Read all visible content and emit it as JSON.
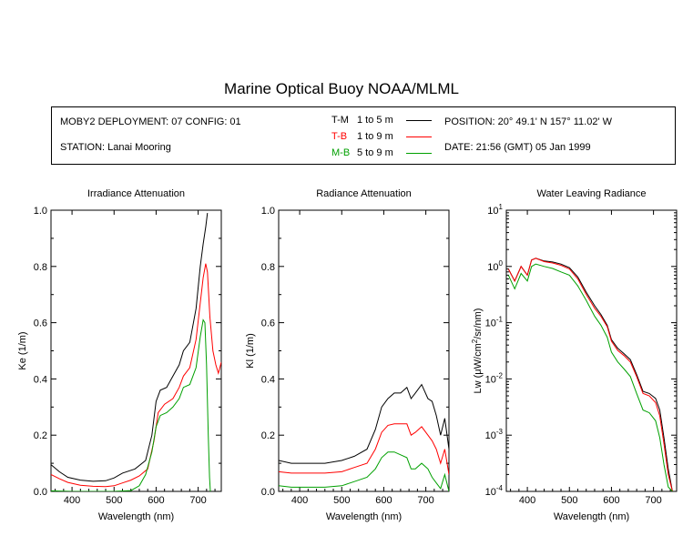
{
  "title": "Marine Optical Buoy NOAA/MLML",
  "info": {
    "deployment": "MOBY2 DEPLOYMENT: 07 CONFIG: 01",
    "station": "STATION: Lanai Mooring",
    "position": "POSITION: 20° 49.1' N   157° 11.02' W",
    "date": "DATE: 21:56 (GMT) 05 Jan 1999"
  },
  "legend": [
    {
      "code": "T-M",
      "range": "1 to 5  m",
      "color": "#000000"
    },
    {
      "code": "T-B",
      "range": "1 to 9  m",
      "color": "#ff0000"
    },
    {
      "code": "M-B",
      "range": "5 to 9  m",
      "color": "#00a000"
    }
  ],
  "chart_data": [
    {
      "type": "line",
      "title": "Irradiance Attenuation",
      "xlabel": "Wavelength (nm)",
      "ylabel": "Ke  (1/m)",
      "xlim": [
        350,
        755
      ],
      "ylim": [
        0,
        1.0
      ],
      "xticks": [
        400,
        500,
        600,
        700
      ],
      "yticks": [
        0.0,
        0.2,
        0.4,
        0.6,
        0.8,
        1.0
      ],
      "ytick_labels": [
        "0.0",
        "0.2",
        "0.4",
        "0.6",
        "0.8",
        "1.0"
      ],
      "series": [
        {
          "name": "T-M",
          "color": "#000000",
          "x": [
            350,
            370,
            390,
            420,
            450,
            480,
            500,
            520,
            550,
            575,
            590,
            600,
            610,
            625,
            640,
            655,
            665,
            680,
            695,
            705,
            712,
            718,
            722
          ],
          "y": [
            0.095,
            0.07,
            0.05,
            0.04,
            0.036,
            0.038,
            0.048,
            0.065,
            0.08,
            0.11,
            0.2,
            0.32,
            0.36,
            0.37,
            0.41,
            0.45,
            0.5,
            0.53,
            0.65,
            0.8,
            0.88,
            0.94,
            0.99
          ]
        },
        {
          "name": "T-B",
          "color": "#ff0000",
          "x": [
            350,
            370,
            390,
            420,
            450,
            480,
            500,
            520,
            540,
            560,
            580,
            595,
            605,
            620,
            640,
            655,
            665,
            680,
            695,
            705,
            712,
            718,
            722,
            728,
            735,
            742,
            748,
            755
          ],
          "y": [
            0.06,
            0.045,
            0.032,
            0.022,
            0.018,
            0.017,
            0.02,
            0.03,
            0.04,
            0.055,
            0.08,
            0.18,
            0.28,
            0.31,
            0.33,
            0.37,
            0.41,
            0.44,
            0.54,
            0.67,
            0.76,
            0.81,
            0.78,
            0.62,
            0.5,
            0.45,
            0.42,
            0.46
          ]
        },
        {
          "name": "M-B",
          "color": "#00a000",
          "x": [
            350,
            400,
            450,
            500,
            540,
            560,
            575,
            590,
            600,
            610,
            625,
            640,
            655,
            665,
            680,
            695,
            705,
            712,
            716,
            720,
            724,
            727,
            729
          ],
          "y": [
            0.002,
            0.0,
            0.0,
            0.0,
            0.003,
            0.02,
            0.06,
            0.14,
            0.23,
            0.27,
            0.28,
            0.3,
            0.33,
            0.37,
            0.38,
            0.44,
            0.55,
            0.61,
            0.6,
            0.45,
            0.2,
            0.05,
            0.0
          ]
        }
      ]
    },
    {
      "type": "line",
      "title": "Radiance Attenuation",
      "xlabel": "Wavelength (nm)",
      "ylabel": "Kl  (1/m)",
      "xlim": [
        350,
        755
      ],
      "ylim": [
        0,
        1.0
      ],
      "xticks": [
        400,
        500,
        600,
        700
      ],
      "yticks": [
        0.0,
        0.2,
        0.4,
        0.6,
        0.8,
        1.0
      ],
      "ytick_labels": [
        "0.0",
        "0.2",
        "0.4",
        "0.6",
        "0.8",
        "1.0"
      ],
      "series": [
        {
          "name": "T-M",
          "color": "#000000",
          "x": [
            350,
            380,
            420,
            460,
            500,
            530,
            560,
            580,
            595,
            610,
            625,
            640,
            655,
            665,
            675,
            690,
            705,
            715,
            725,
            735,
            745,
            755
          ],
          "y": [
            0.11,
            0.1,
            0.1,
            0.1,
            0.11,
            0.125,
            0.15,
            0.22,
            0.3,
            0.33,
            0.35,
            0.35,
            0.37,
            0.33,
            0.35,
            0.38,
            0.33,
            0.32,
            0.27,
            0.2,
            0.26,
            0.15
          ]
        },
        {
          "name": "T-B",
          "color": "#ff0000",
          "x": [
            350,
            380,
            420,
            460,
            500,
            530,
            560,
            580,
            595,
            610,
            625,
            640,
            655,
            665,
            675,
            690,
            705,
            715,
            725,
            735,
            745,
            755
          ],
          "y": [
            0.07,
            0.065,
            0.065,
            0.065,
            0.07,
            0.085,
            0.1,
            0.15,
            0.21,
            0.235,
            0.24,
            0.24,
            0.24,
            0.2,
            0.21,
            0.23,
            0.2,
            0.18,
            0.15,
            0.1,
            0.15,
            0.06
          ]
        },
        {
          "name": "M-B",
          "color": "#00a000",
          "x": [
            350,
            380,
            420,
            460,
            500,
            530,
            560,
            580,
            595,
            610,
            625,
            640,
            655,
            665,
            675,
            690,
            705,
            715,
            725,
            735,
            745,
            755
          ],
          "y": [
            0.02,
            0.015,
            0.015,
            0.015,
            0.02,
            0.035,
            0.05,
            0.08,
            0.12,
            0.14,
            0.14,
            0.13,
            0.12,
            0.08,
            0.08,
            0.1,
            0.08,
            0.05,
            0.03,
            0.01,
            0.06,
            0.0
          ]
        }
      ]
    },
    {
      "type": "line",
      "title": "Water Leaving Radiance",
      "xlabel": "Wavelength (nm)",
      "ylabel": "Lw  (μW/cm²/sr/nm)",
      "xlim": [
        350,
        755
      ],
      "ylim": [
        0.0001,
        10
      ],
      "yscale": "log",
      "xticks": [
        400,
        500,
        600,
        700
      ],
      "yticks": [
        0.0001,
        0.001,
        0.01,
        0.1,
        1,
        10
      ],
      "ytick_labels": [
        "10⁻⁴",
        "10⁻³",
        "10⁻²",
        "10⁻¹",
        "10⁰",
        "10¹"
      ],
      "series": [
        {
          "name": "T-M",
          "color": "#000000",
          "x": [
            355,
            370,
            385,
            400,
            410,
            420,
            440,
            460,
            480,
            500,
            520,
            540,
            560,
            575,
            590,
            600,
            615,
            630,
            645,
            660,
            675,
            690,
            705,
            715,
            725,
            735,
            745
          ],
          "y": [
            0.9,
            0.55,
            1.0,
            0.7,
            1.3,
            1.4,
            1.25,
            1.2,
            1.1,
            0.95,
            0.65,
            0.35,
            0.2,
            0.14,
            0.09,
            0.05,
            0.035,
            0.028,
            0.022,
            0.012,
            0.006,
            0.0055,
            0.0045,
            0.0028,
            0.0009,
            0.00025,
            0.0001
          ]
        },
        {
          "name": "T-B",
          "color": "#ff0000",
          "x": [
            355,
            370,
            385,
            400,
            410,
            420,
            440,
            460,
            480,
            500,
            520,
            540,
            560,
            575,
            590,
            600,
            615,
            630,
            645,
            660,
            675,
            690,
            705,
            715,
            725,
            735,
            745
          ],
          "y": [
            0.9,
            0.55,
            1.0,
            0.7,
            1.3,
            1.4,
            1.22,
            1.15,
            1.05,
            0.9,
            0.6,
            0.32,
            0.18,
            0.13,
            0.085,
            0.047,
            0.032,
            0.026,
            0.02,
            0.011,
            0.0055,
            0.005,
            0.0038,
            0.0022,
            0.0007,
            0.0002,
            0.0001
          ]
        },
        {
          "name": "M-B",
          "color": "#00a000",
          "x": [
            355,
            370,
            385,
            400,
            410,
            420,
            440,
            460,
            480,
            500,
            520,
            540,
            560,
            575,
            590,
            600,
            615,
            630,
            645,
            660,
            675,
            690,
            705,
            715,
            725,
            735,
            745
          ],
          "y": [
            0.7,
            0.4,
            0.75,
            0.55,
            1.0,
            1.1,
            1.0,
            0.92,
            0.8,
            0.7,
            0.45,
            0.25,
            0.13,
            0.09,
            0.055,
            0.03,
            0.02,
            0.015,
            0.011,
            0.0055,
            0.0028,
            0.0025,
            0.0018,
            0.0009,
            0.0003,
            0.00012,
            0.0001
          ]
        }
      ]
    }
  ]
}
